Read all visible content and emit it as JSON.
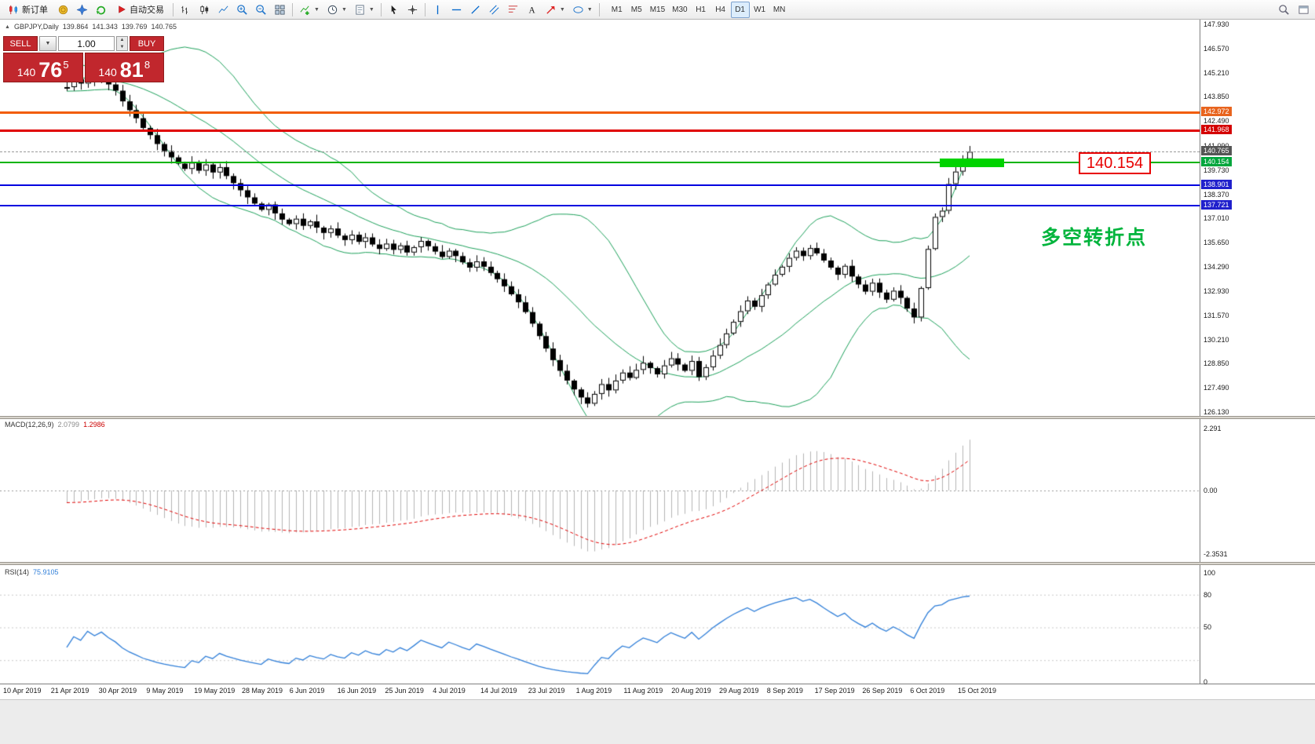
{
  "toolbar": {
    "new_order_label": "新订单",
    "auto_trading_label": "自动交易",
    "timeframes": [
      "M1",
      "M5",
      "M15",
      "M30",
      "H1",
      "H4",
      "D1",
      "W1",
      "MN"
    ],
    "active_timeframe": "D1"
  },
  "chart_header": {
    "symbol_period": "GBPJPY,Daily",
    "open": "139.864",
    "high": "141.343",
    "low": "139.769",
    "close": "140.765"
  },
  "trade_panel": {
    "sell_label": "SELL",
    "buy_label": "BUY",
    "volume": "1.00",
    "sell_price_main": "140",
    "sell_price_pips": "76",
    "sell_price_sup": "5",
    "buy_price_main": "140",
    "buy_price_pips": "81",
    "buy_price_sup": "8",
    "button_color": "#c1272d"
  },
  "levels": [
    {
      "price": "142.972",
      "value": 142.972,
      "line_color": "#f25c05",
      "tag_bg": "#e8641e",
      "thickness": 3,
      "dashed": false
    },
    {
      "price": "141.968",
      "value": 141.968,
      "line_color": "#e00000",
      "tag_bg": "#d40000",
      "thickness": 3,
      "dashed": false
    },
    {
      "price": "140.765",
      "value": 140.765,
      "line_color": "#9a9a9a",
      "tag_bg": "#555555",
      "thickness": 1,
      "dashed": true
    },
    {
      "price": "140.154",
      "value": 140.154,
      "line_color": "#00b400",
      "tag_bg": "#00a63c",
      "thickness": 2,
      "dashed": false
    },
    {
      "price": "138.901",
      "value": 138.901,
      "line_color": "#0000e0",
      "tag_bg": "#2020cc",
      "thickness": 2,
      "dashed": false
    },
    {
      "price": "137.721",
      "value": 137.721,
      "line_color": "#0000e0",
      "tag_bg": "#2020cc",
      "thickness": 2,
      "dashed": false
    }
  ],
  "annotations": {
    "price_callout": "140.154",
    "callout_color": "#e80000",
    "turning_point_text": "多空转折点",
    "turning_point_color": "#00b43c",
    "highlight_zone_color": "#00d300"
  },
  "macd_panel": {
    "name": "MACD(12,26,9)",
    "value_main": "2.0799",
    "value_signal": "1.2986",
    "axis": [
      "2.291",
      "0.00",
      "-2.3531"
    ]
  },
  "rsi_panel": {
    "name": "RSI(14)",
    "value": "75.9105",
    "axis": [
      "100",
      "80",
      "50",
      "0"
    ]
  },
  "chart_data": {
    "type": "candlestick",
    "symbol": "GBPJPY",
    "period": "Daily",
    "current_ohlc": {
      "open": 139.864,
      "high": 141.343,
      "low": 139.769,
      "close": 140.765
    },
    "price_axis_ticks": [
      "147.930",
      "146.570",
      "145.210",
      "143.850",
      "142.490",
      "141.090",
      "139.730",
      "138.370",
      "137.010",
      "135.650",
      "134.290",
      "132.930",
      "131.570",
      "130.210",
      "128.850",
      "127.490",
      "126.130"
    ],
    "price_range": [
      125.91,
      147.93
    ],
    "horizontal_levels": [
      142.972,
      141.968,
      140.765,
      140.154,
      138.901,
      137.721
    ],
    "closes": [
      144.4,
      144.85,
      144.6,
      145.05,
      144.75,
      144.95,
      144.55,
      144.2,
      143.6,
      143.1,
      142.65,
      142.1,
      141.7,
      141.2,
      140.8,
      140.45,
      140.1,
      139.8,
      140.15,
      139.7,
      140.05,
      139.6,
      139.9,
      139.4,
      139.0,
      138.6,
      138.2,
      137.85,
      137.5,
      137.8,
      137.3,
      136.95,
      136.7,
      137.0,
      136.6,
      136.85,
      136.5,
      136.2,
      136.45,
      136.05,
      135.8,
      136.1,
      135.7,
      135.95,
      135.55,
      135.3,
      135.6,
      135.25,
      135.5,
      135.1,
      135.4,
      135.75,
      135.45,
      135.15,
      134.85,
      135.2,
      134.9,
      134.55,
      134.25,
      134.6,
      134.3,
      133.95,
      133.6,
      133.2,
      132.75,
      132.3,
      131.75,
      131.1,
      130.4,
      129.7,
      129.05,
      128.45,
      127.9,
      127.4,
      126.95,
      126.6,
      127.15,
      127.7,
      127.35,
      127.9,
      128.35,
      128.05,
      128.5,
      128.9,
      128.6,
      128.25,
      128.75,
      129.15,
      128.8,
      128.45,
      129.0,
      128.1,
      128.65,
      129.3,
      129.9,
      130.55,
      131.2,
      131.8,
      132.4,
      132.05,
      132.7,
      133.3,
      133.85,
      134.3,
      134.8,
      135.2,
      134.9,
      135.35,
      135.05,
      134.65,
      134.25,
      133.85,
      134.35,
      133.75,
      133.3,
      132.9,
      133.4,
      132.85,
      132.45,
      132.95,
      132.55,
      131.95,
      131.45,
      133.1,
      135.3,
      137.1,
      137.45,
      138.95,
      139.65,
      140.35,
      140.765
    ],
    "indicators": {
      "bollinger": {
        "period": 20,
        "deviation": 2,
        "color": "#1ca05a"
      },
      "macd": {
        "fast": 12,
        "slow": 26,
        "signal": 9,
        "current": 2.0799,
        "signal_current": 1.2986,
        "axis_max": 2.291,
        "axis_min": -2.3531,
        "histogram_color": "#b4b4b4",
        "signal_color": "#e00000"
      },
      "rsi": {
        "period": 14,
        "current": 75.9105,
        "color": "#2f7ed8"
      }
    },
    "time_axis": [
      "10 Apr 2019",
      "21 Apr 2019",
      "30 Apr 2019",
      "9 May 2019",
      "19 May 2019",
      "28 May 2019",
      "6 Jun 2019",
      "16 Jun 2019",
      "25 Jun 2019",
      "4 Jul 2019",
      "14 Jul 2019",
      "23 Jul 2019",
      "1 Aug 2019",
      "11 Aug 2019",
      "20 Aug 2019",
      "29 Aug 2019",
      "8 Sep 2019",
      "17 Sep 2019",
      "26 Sep 2019",
      "6 Oct 2019",
      "15 Oct 2019"
    ]
  }
}
